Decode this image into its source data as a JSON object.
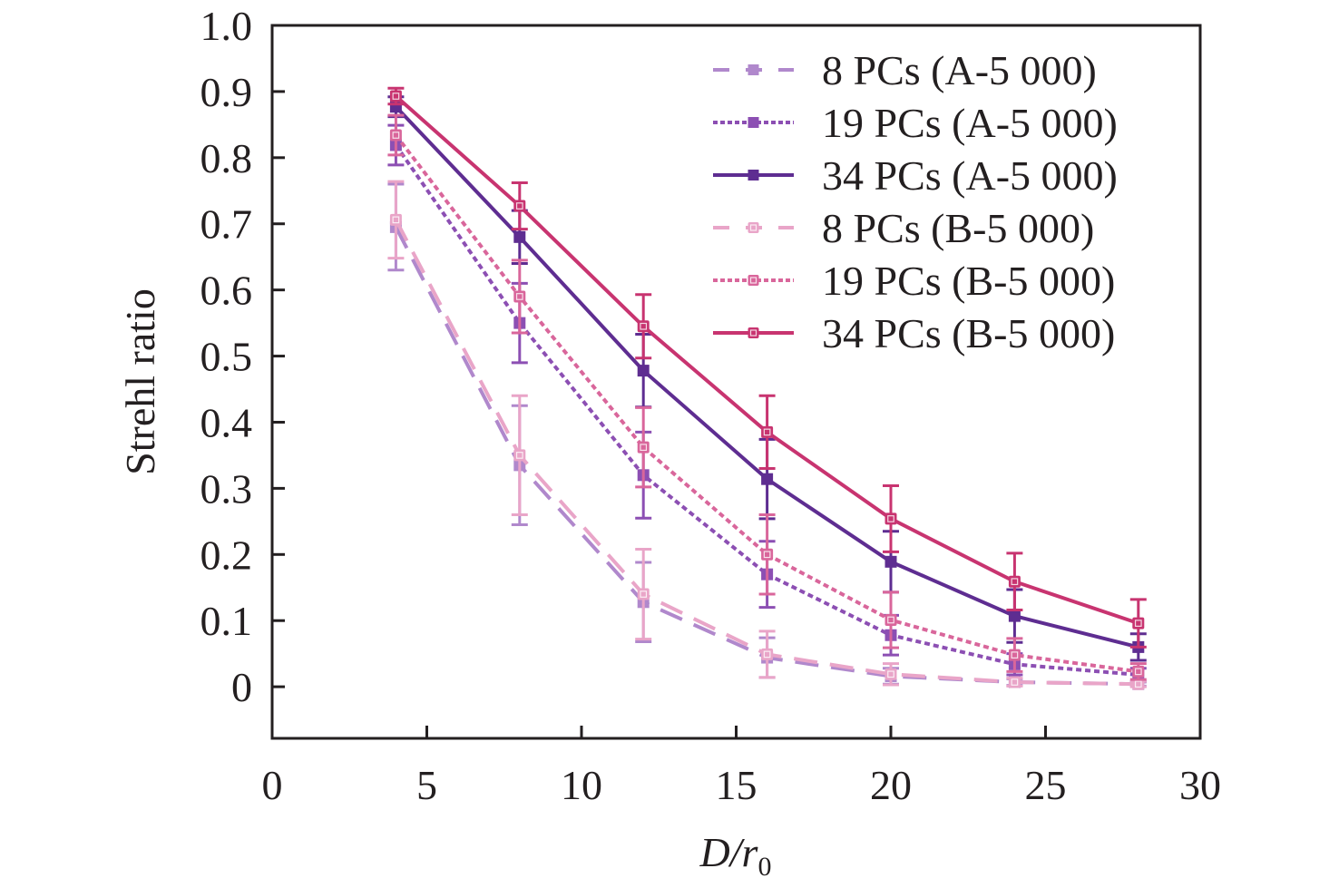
{
  "chart_data": {
    "type": "line",
    "title": "",
    "xlabel": "D/r0",
    "xlabel_parts": {
      "main": "D/",
      "var": "r",
      "sub": "0"
    },
    "ylabel": "Strehl ratio",
    "xlim": [
      0,
      30
    ],
    "ylim": [
      -0.078,
      1.0
    ],
    "xticks": [
      0,
      5,
      10,
      15,
      20,
      25,
      30
    ],
    "xtick_labels": [
      "0",
      "5",
      "10",
      "15",
      "20",
      "25",
      "30"
    ],
    "yticks": [
      0,
      0.1,
      0.2,
      0.3,
      0.4,
      0.5,
      0.6,
      0.7,
      0.8,
      0.9,
      1.0
    ],
    "ytick_labels": [
      "0",
      "0.1",
      "0.2",
      "0.3",
      "0.4",
      "0.5",
      "0.6",
      "0.7",
      "0.8",
      "0.9",
      "1.0"
    ],
    "grid": false,
    "legend_position": "top-right",
    "x": [
      4,
      8,
      12,
      16,
      20,
      24,
      28
    ],
    "series": [
      {
        "name": "8 PCs (A-5 000)",
        "color": "#b088cc",
        "line": "dashed",
        "marker": "filled-square",
        "values": [
          0.695,
          0.335,
          0.128,
          0.044,
          0.016,
          0.007,
          0.004
        ],
        "errors": [
          0.065,
          0.09,
          0.06,
          0.03,
          0.012,
          0.005,
          0.003
        ]
      },
      {
        "name": "19 PCs (A-5 000)",
        "color": "#8c4fb3",
        "line": "dotted",
        "marker": "filled-square",
        "values": [
          0.819,
          0.55,
          0.32,
          0.17,
          0.078,
          0.034,
          0.018
        ],
        "errors": [
          0.03,
          0.06,
          0.065,
          0.05,
          0.03,
          0.016,
          0.01
        ]
      },
      {
        "name": "34 PCs (A-5 000)",
        "color": "#5e2d91",
        "line": "solid",
        "marker": "filled-square",
        "values": [
          0.877,
          0.68,
          0.478,
          0.314,
          0.189,
          0.107,
          0.06
        ],
        "errors": [
          0.015,
          0.04,
          0.055,
          0.06,
          0.046,
          0.04,
          0.02
        ]
      },
      {
        "name": "8 PCs (B-5 000)",
        "color": "#e9a5c8",
        "line": "dashed",
        "marker": "open-square",
        "values": [
          0.706,
          0.35,
          0.14,
          0.049,
          0.019,
          0.007,
          0.004
        ],
        "errors": [
          0.058,
          0.09,
          0.068,
          0.035,
          0.016,
          0.006,
          0.004
        ]
      },
      {
        "name": "19 PCs (B-5 000)",
        "color": "#d9669b",
        "line": "dotted",
        "marker": "open-square",
        "values": [
          0.834,
          0.59,
          0.362,
          0.2,
          0.101,
          0.048,
          0.023
        ],
        "errors": [
          0.03,
          0.055,
          0.06,
          0.06,
          0.042,
          0.025,
          0.012
        ]
      },
      {
        "name": "34 PCs (B-5 000)",
        "color": "#c83470",
        "line": "solid",
        "marker": "open-square",
        "values": [
          0.893,
          0.727,
          0.545,
          0.385,
          0.254,
          0.159,
          0.096
        ],
        "errors": [
          0.012,
          0.035,
          0.048,
          0.055,
          0.05,
          0.043,
          0.036
        ]
      }
    ]
  }
}
